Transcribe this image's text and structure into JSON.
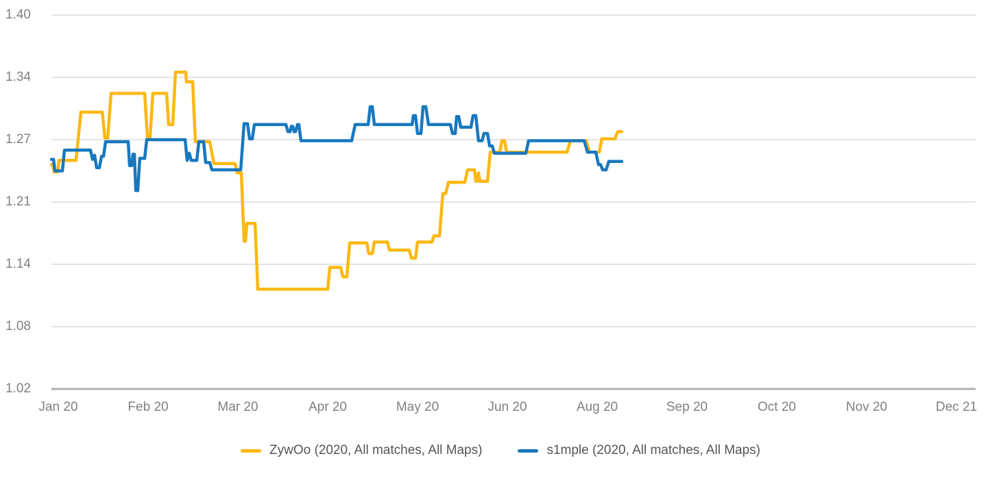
{
  "page": {
    "background": "#FFFFFF"
  },
  "chart_data": {
    "type": "line",
    "title": "",
    "xlabel": "",
    "ylabel": "",
    "x_unit": "month ticks (0 = Jan 20, 1 tick per x-axis label)",
    "y_range": [
      1.02,
      1.4
    ],
    "layout": {
      "grid": "on",
      "legend_position": "bottom",
      "grid_color": "#DADADA",
      "axis_line_color": "#AFAFAF",
      "tick_label_color": "#808080",
      "legend_text_color": "#555555"
    },
    "y_axis": {
      "ticks": [
        {
          "label": "1.40",
          "value": 1.4
        },
        {
          "label": "1.34",
          "value": 1.34
        },
        {
          "label": "1.27",
          "value": 1.27
        },
        {
          "label": "1.21",
          "value": 1.21
        },
        {
          "label": "1.14",
          "value": 1.14
        },
        {
          "label": "1.08",
          "value": 1.08
        },
        {
          "label": "1.02",
          "value": 1.02
        }
      ]
    },
    "x_axis": {
      "ticks": [
        "Jan 20",
        "Feb 20",
        "Mar 20",
        "Apr 20",
        "May 20",
        "Jun 20",
        "Aug 20",
        "Sep 20",
        "Oct 20",
        "Nov 20",
        "Dec 21"
      ]
    },
    "series": [
      {
        "name": "ZywOo",
        "legend_label": "ZywOo (2020, All matches, All Maps)",
        "color": "#FCB813",
        "points": [
          [
            -0.076,
            1.246
          ],
          [
            -0.061,
            1.246
          ],
          [
            -0.046,
            1.239
          ],
          [
            -0.008,
            1.239
          ],
          [
            0.008,
            1.25
          ],
          [
            0.198,
            1.25
          ],
          [
            0.252,
            1.301
          ],
          [
            0.489,
            1.301
          ],
          [
            0.519,
            1.272
          ],
          [
            0.55,
            1.272
          ],
          [
            0.588,
            1.322
          ],
          [
            0.962,
            1.322
          ],
          [
            0.992,
            1.273
          ],
          [
            1.023,
            1.273
          ],
          [
            1.053,
            1.322
          ],
          [
            1.206,
            1.322
          ],
          [
            1.229,
            1.287
          ],
          [
            1.275,
            1.287
          ],
          [
            1.305,
            1.345
          ],
          [
            1.42,
            1.345
          ],
          [
            1.427,
            1.335
          ],
          [
            1.496,
            1.335
          ],
          [
            1.527,
            1.268
          ],
          [
            1.687,
            1.268
          ],
          [
            1.733,
            1.247
          ],
          [
            1.969,
            1.247
          ],
          [
            1.992,
            1.238
          ],
          [
            2.038,
            1.238
          ],
          [
            2.069,
            1.166
          ],
          [
            2.084,
            1.166
          ],
          [
            2.099,
            1.186
          ],
          [
            2.191,
            1.186
          ],
          [
            2.221,
            1.116
          ],
          [
            3.0,
            1.116
          ],
          [
            3.023,
            1.137
          ],
          [
            3.145,
            1.137
          ],
          [
            3.168,
            1.128
          ],
          [
            3.214,
            1.128
          ],
          [
            3.244,
            1.164
          ],
          [
            3.435,
            1.164
          ],
          [
            3.458,
            1.152
          ],
          [
            3.496,
            1.152
          ],
          [
            3.519,
            1.165
          ],
          [
            3.664,
            1.165
          ],
          [
            3.687,
            1.156
          ],
          [
            3.908,
            1.156
          ],
          [
            3.931,
            1.147
          ],
          [
            3.977,
            1.147
          ],
          [
            4.0,
            1.165
          ],
          [
            4.16,
            1.165
          ],
          [
            4.183,
            1.172
          ],
          [
            4.244,
            1.172
          ],
          [
            4.282,
            1.218
          ],
          [
            4.313,
            1.218
          ],
          [
            4.344,
            1.229
          ],
          [
            4.527,
            1.229
          ],
          [
            4.557,
            1.241
          ],
          [
            4.634,
            1.241
          ],
          [
            4.649,
            1.23
          ],
          [
            4.664,
            1.23
          ],
          [
            4.679,
            1.238
          ],
          [
            4.695,
            1.23
          ],
          [
            4.779,
            1.23
          ],
          [
            4.809,
            1.258
          ],
          [
            4.916,
            1.258
          ],
          [
            4.939,
            1.269
          ],
          [
            4.969,
            1.269
          ],
          [
            4.992,
            1.258
          ],
          [
            5.664,
            1.258
          ],
          [
            5.702,
            1.269
          ],
          [
            5.878,
            1.269
          ],
          [
            5.916,
            1.258
          ],
          [
            6.023,
            1.258
          ],
          [
            6.053,
            1.271
          ],
          [
            6.198,
            1.271
          ],
          [
            6.229,
            1.279
          ],
          [
            6.275,
            1.279
          ]
        ]
      },
      {
        "name": "s1mple",
        "legend_label": "s1mple (2020, All matches, All Maps)",
        "color": "#1878BE",
        "points": [
          [
            -0.076,
            1.251
          ],
          [
            -0.053,
            1.251
          ],
          [
            -0.038,
            1.24
          ],
          [
            0.046,
            1.24
          ],
          [
            0.069,
            1.26
          ],
          [
            0.359,
            1.26
          ],
          [
            0.382,
            1.251
          ],
          [
            0.405,
            1.255
          ],
          [
            0.427,
            1.243
          ],
          [
            0.458,
            1.243
          ],
          [
            0.481,
            1.254
          ],
          [
            0.504,
            1.254
          ],
          [
            0.527,
            1.268
          ],
          [
            0.779,
            1.268
          ],
          [
            0.794,
            1.245
          ],
          [
            0.817,
            1.245
          ],
          [
            0.832,
            1.256
          ],
          [
            0.847,
            1.256
          ],
          [
            0.863,
            1.221
          ],
          [
            0.885,
            1.221
          ],
          [
            0.908,
            1.252
          ],
          [
            0.962,
            1.252
          ],
          [
            0.985,
            1.27
          ],
          [
            1.412,
            1.27
          ],
          [
            1.435,
            1.25
          ],
          [
            1.458,
            1.257
          ],
          [
            1.481,
            1.25
          ],
          [
            1.542,
            1.25
          ],
          [
            1.565,
            1.268
          ],
          [
            1.618,
            1.268
          ],
          [
            1.641,
            1.248
          ],
          [
            1.687,
            1.248
          ],
          [
            1.71,
            1.241
          ],
          [
            2.031,
            1.241
          ],
          [
            2.069,
            1.288
          ],
          [
            2.107,
            1.288
          ],
          [
            2.13,
            1.271
          ],
          [
            2.16,
            1.271
          ],
          [
            2.183,
            1.287
          ],
          [
            2.534,
            1.287
          ],
          [
            2.557,
            1.279
          ],
          [
            2.58,
            1.279
          ],
          [
            2.595,
            1.285
          ],
          [
            2.611,
            1.285
          ],
          [
            2.626,
            1.279
          ],
          [
            2.641,
            1.279
          ],
          [
            2.664,
            1.287
          ],
          [
            2.679,
            1.287
          ],
          [
            2.702,
            1.269
          ],
          [
            3.267,
            1.269
          ],
          [
            3.305,
            1.287
          ],
          [
            3.45,
            1.287
          ],
          [
            3.473,
            1.307
          ],
          [
            3.496,
            1.307
          ],
          [
            3.519,
            1.287
          ],
          [
            3.939,
            1.287
          ],
          [
            3.954,
            1.297
          ],
          [
            3.977,
            1.297
          ],
          [
            4.0,
            1.277
          ],
          [
            4.038,
            1.277
          ],
          [
            4.061,
            1.307
          ],
          [
            4.092,
            1.307
          ],
          [
            4.122,
            1.287
          ],
          [
            4.366,
            1.287
          ],
          [
            4.389,
            1.277
          ],
          [
            4.42,
            1.277
          ],
          [
            4.435,
            1.296
          ],
          [
            4.458,
            1.296
          ],
          [
            4.481,
            1.284
          ],
          [
            4.595,
            1.284
          ],
          [
            4.618,
            1.297
          ],
          [
            4.649,
            1.297
          ],
          [
            4.679,
            1.269
          ],
          [
            4.718,
            1.269
          ],
          [
            4.74,
            1.277
          ],
          [
            4.779,
            1.277
          ],
          [
            4.802,
            1.264
          ],
          [
            4.832,
            1.264
          ],
          [
            4.855,
            1.257
          ],
          [
            5.206,
            1.257
          ],
          [
            5.237,
            1.269
          ],
          [
            5.855,
            1.269
          ],
          [
            5.893,
            1.258
          ],
          [
            5.985,
            1.258
          ],
          [
            6.015,
            1.246
          ],
          [
            6.038,
            1.246
          ],
          [
            6.061,
            1.241
          ],
          [
            6.099,
            1.241
          ],
          [
            6.13,
            1.249
          ],
          [
            6.275,
            1.249
          ]
        ]
      }
    ],
    "legend": {
      "items": [
        "ZywOo (2020, All matches, All Maps)",
        "s1mple (2020, All matches, All Maps)"
      ]
    }
  }
}
